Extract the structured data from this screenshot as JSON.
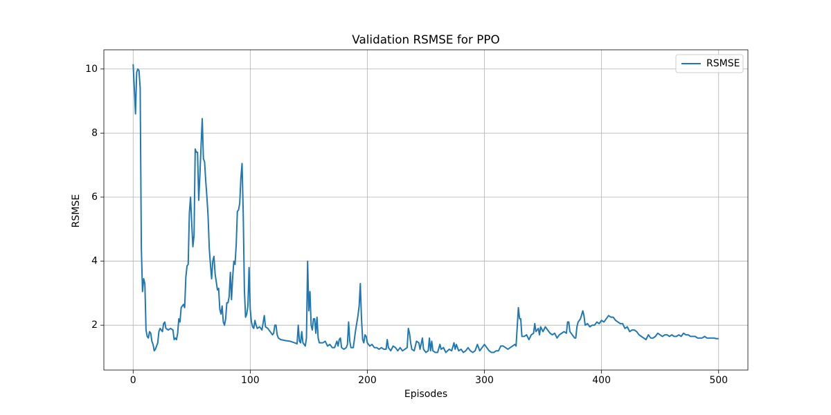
{
  "chart_data": {
    "type": "line",
    "title": "Validation RSMSE for PPO",
    "xlabel": "Episodes",
    "ylabel": "RSMSE",
    "x": [
      0,
      1,
      2,
      3,
      4,
      5,
      6,
      7,
      8,
      9,
      10,
      11,
      12,
      13,
      14,
      15,
      16,
      17,
      18,
      19,
      20,
      21,
      22,
      23,
      24,
      25,
      26,
      27,
      28,
      30,
      32,
      34,
      35,
      36,
      37,
      38,
      39,
      40,
      41,
      42,
      43,
      44,
      45,
      46,
      47,
      48,
      49,
      50,
      51,
      52,
      53,
      54,
      55,
      56,
      57,
      58,
      59,
      60,
      61,
      62,
      63,
      64,
      65,
      66,
      67,
      68,
      69,
      70,
      71,
      72,
      73,
      74,
      75,
      76,
      77,
      78,
      79,
      80,
      81,
      82,
      83,
      84,
      85,
      86,
      87,
      88,
      89,
      90,
      91,
      92,
      93,
      94,
      95,
      96,
      97,
      98,
      99,
      100,
      101,
      102,
      103,
      104,
      105,
      106,
      108,
      110,
      112,
      113,
      115,
      117,
      119,
      120,
      121,
      122,
      123,
      124,
      126,
      130,
      134,
      138,
      140,
      141,
      142,
      143,
      144,
      145,
      146,
      147,
      148,
      149,
      150,
      151,
      152,
      153,
      154,
      155,
      156,
      157,
      158,
      159,
      162,
      164,
      166,
      168,
      170,
      172,
      174,
      175,
      176,
      177,
      178,
      180,
      182,
      183,
      184,
      185,
      186,
      188,
      190,
      192,
      193,
      194,
      195,
      196,
      197,
      198,
      199,
      200,
      202,
      204,
      206,
      208,
      210,
      212,
      214,
      216,
      217,
      218,
      220,
      222,
      224,
      226,
      228,
      230,
      232,
      234,
      235,
      236,
      237,
      238,
      240,
      242,
      244,
      245,
      247,
      248,
      250,
      252,
      253,
      254,
      255,
      256,
      258,
      260,
      262,
      263,
      265,
      267,
      270,
      272,
      274,
      275,
      276,
      278,
      280,
      282,
      284,
      286,
      288,
      290,
      292,
      294,
      296,
      298,
      300,
      302,
      304,
      306,
      308,
      310,
      312,
      314,
      316,
      318,
      320,
      322,
      324,
      326,
      327,
      328,
      329,
      330,
      331,
      332,
      334,
      336,
      338,
      340,
      342,
      343,
      344,
      346,
      347,
      348,
      350,
      352,
      354,
      356,
      358,
      360,
      362,
      364,
      366,
      368,
      370,
      371,
      372,
      373,
      375,
      377,
      378,
      379,
      380,
      382,
      384,
      385,
      386,
      388,
      390,
      392,
      394,
      396,
      398,
      400,
      402,
      404,
      406,
      408,
      410,
      412,
      414,
      416,
      418,
      420,
      422,
      424,
      426,
      428,
      430,
      432,
      434,
      436,
      438,
      440,
      442,
      444,
      446,
      448,
      450,
      452,
      454,
      456,
      458,
      460,
      462,
      464,
      466,
      468,
      470,
      472,
      474,
      476,
      478,
      480,
      482,
      484,
      486,
      488,
      490,
      492,
      494,
      496,
      498,
      500
    ],
    "series": [
      {
        "name": "RSMSE",
        "color": "#1f77b4",
        "values": [
          10.15,
          9.4,
          8.6,
          9.9,
          10.0,
          9.95,
          9.4,
          4.4,
          3.05,
          3.45,
          3.3,
          1.85,
          1.65,
          1.6,
          1.8,
          1.75,
          1.5,
          1.4,
          1.2,
          1.25,
          1.35,
          1.45,
          1.8,
          1.9,
          1.85,
          1.8,
          2.05,
          2.1,
          1.9,
          1.85,
          1.9,
          1.85,
          1.55,
          1.6,
          1.55,
          1.75,
          2.2,
          2.1,
          2.55,
          2.6,
          2.65,
          2.55,
          3.5,
          3.85,
          3.9,
          5.5,
          6.0,
          5.2,
          4.45,
          4.8,
          7.5,
          7.4,
          7.4,
          5.9,
          6.7,
          7.6,
          8.45,
          7.2,
          7.1,
          6.5,
          6.0,
          5.4,
          4.4,
          3.9,
          3.45,
          4.0,
          4.15,
          3.6,
          3.35,
          3.1,
          3.15,
          2.5,
          2.35,
          2.6,
          2.1,
          2.0,
          2.2,
          2.7,
          2.7,
          2.9,
          3.65,
          2.8,
          3.5,
          4.0,
          3.9,
          4.5,
          5.55,
          5.6,
          5.8,
          6.6,
          7.05,
          5.5,
          3.1,
          2.25,
          2.35,
          2.6,
          3.8,
          2.5,
          2.1,
          1.95,
          1.9,
          2.15,
          2.0,
          1.9,
          1.95,
          1.85,
          2.3,
          1.95,
          1.9,
          1.8,
          1.7,
          1.75,
          2.0,
          2.0,
          1.7,
          1.6,
          1.55,
          1.52,
          1.5,
          1.45,
          1.42,
          2.0,
          1.5,
          1.45,
          1.8,
          1.45,
          1.4,
          1.35,
          1.6,
          4.0,
          2.45,
          3.05,
          2.0,
          1.85,
          2.2,
          2.2,
          1.75,
          2.25,
          1.6,
          1.45,
          1.45,
          1.5,
          1.35,
          1.4,
          1.3,
          1.3,
          1.5,
          1.35,
          1.55,
          1.6,
          1.3,
          1.25,
          1.3,
          1.4,
          2.1,
          1.5,
          1.3,
          1.3,
          1.85,
          2.3,
          2.6,
          3.3,
          2.2,
          1.55,
          1.45,
          1.7,
          1.65,
          1.45,
          1.35,
          1.4,
          1.3,
          1.3,
          1.25,
          1.3,
          1.25,
          1.25,
          1.55,
          1.3,
          1.2,
          1.35,
          1.3,
          1.2,
          1.3,
          1.2,
          1.25,
          1.3,
          1.9,
          1.75,
          1.45,
          1.25,
          1.2,
          1.5,
          1.45,
          1.25,
          1.6,
          1.25,
          1.15,
          1.2,
          1.6,
          1.2,
          1.5,
          1.2,
          1.15,
          1.15,
          1.4,
          1.25,
          1.3,
          1.15,
          1.25,
          1.2,
          1.45,
          1.25,
          1.4,
          1.2,
          1.25,
          1.15,
          1.2,
          1.3,
          1.2,
          1.15,
          1.2,
          1.4,
          1.2,
          1.3,
          1.4,
          1.3,
          1.2,
          1.15,
          1.15,
          1.2,
          1.2,
          1.35,
          1.35,
          1.3,
          1.25,
          1.3,
          1.35,
          1.4,
          1.35,
          1.95,
          2.55,
          2.2,
          2.2,
          1.65,
          1.65,
          1.7,
          1.55,
          1.7,
          1.75,
          2.05,
          1.8,
          1.9,
          1.7,
          1.95,
          1.8,
          1.95,
          1.85,
          1.75,
          1.7,
          1.75,
          1.6,
          1.7,
          1.75,
          1.8,
          1.75,
          2.1,
          2.1,
          1.8,
          1.7,
          1.6,
          1.6,
          1.95,
          2.1,
          2.2,
          2.45,
          2.3,
          2.0,
          2.05,
          1.95,
          2.0,
          2.0,
          2.1,
          2.05,
          2.15,
          2.1,
          2.2,
          2.3,
          2.25,
          2.25,
          2.15,
          2.1,
          2.05,
          2.05,
          1.9,
          1.95,
          1.8,
          1.85,
          1.85,
          1.8,
          1.7,
          1.65,
          1.6,
          1.55,
          1.7,
          1.6,
          1.6,
          1.65,
          1.75,
          1.7,
          1.65,
          1.7,
          1.7,
          1.65,
          1.7,
          1.65,
          1.65,
          1.7,
          1.65,
          1.75,
          1.7,
          1.7,
          1.65,
          1.65,
          1.65,
          1.6,
          1.6,
          1.6,
          1.65,
          1.6,
          1.6,
          1.6,
          1.6,
          1.58,
          1.58
        ]
      }
    ],
    "xlim": [
      -25,
      525
    ],
    "ylim": [
      0.6,
      10.6
    ],
    "xticks": [
      0,
      100,
      200,
      300,
      400,
      500
    ],
    "yticks": [
      2,
      4,
      6,
      8,
      10
    ],
    "grid": true,
    "legend": "upper right"
  }
}
